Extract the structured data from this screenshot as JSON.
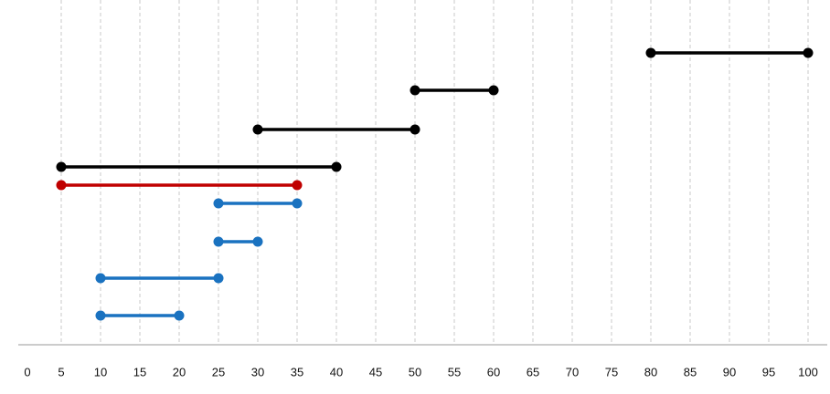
{
  "chart_data": {
    "type": "interval",
    "xlim": [
      0,
      100
    ],
    "xticks": [
      0,
      5,
      10,
      15,
      20,
      25,
      30,
      35,
      40,
      45,
      50,
      55,
      60,
      65,
      70,
      75,
      80,
      85,
      90,
      95,
      100
    ],
    "grid": true,
    "series": [
      {
        "color": "#000000",
        "values": [
          80,
          100
        ]
      },
      {
        "color": "#000000",
        "values": [
          50,
          60
        ]
      },
      {
        "color": "#000000",
        "values": [
          30,
          50
        ]
      },
      {
        "color": "#000000",
        "values": [
          5,
          40
        ]
      },
      {
        "color": "#c00000",
        "values": [
          5,
          35
        ]
      },
      {
        "color": "#1a72c0",
        "values": [
          25,
          35
        ]
      },
      {
        "color": "#1a72c0",
        "values": [
          25,
          30
        ]
      },
      {
        "color": "#1a72c0",
        "values": [
          10,
          25
        ]
      },
      {
        "color": "#1a72c0",
        "values": [
          10,
          20
        ]
      }
    ]
  }
}
